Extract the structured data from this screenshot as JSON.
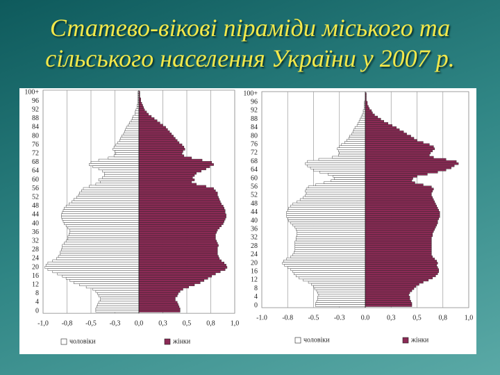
{
  "title": [
    "Статево-вікові піраміди міського та",
    "сільського населення України у 2007 р."
  ],
  "chart_data": [
    {
      "type": "pyramid",
      "categories": [
        "0",
        null,
        null,
        null,
        "4",
        null,
        null,
        null,
        "8",
        null,
        null,
        null,
        "12",
        null,
        null,
        null,
        "16",
        null,
        null,
        null,
        "20",
        null,
        null,
        null,
        "24",
        null,
        null,
        null,
        "28",
        null,
        null,
        null,
        "32",
        null,
        null,
        null,
        "36",
        null,
        null,
        null,
        "40",
        null,
        null,
        null,
        "44",
        null,
        null,
        null,
        "48",
        null,
        null,
        null,
        "52",
        null,
        null,
        null,
        "56",
        null,
        null,
        null,
        "60",
        null,
        null,
        null,
        "64",
        null,
        null,
        null,
        "68",
        null,
        null,
        null,
        "72",
        null,
        null,
        null,
        "76",
        null,
        null,
        null,
        "80",
        null,
        null,
        null,
        "84",
        null,
        null,
        null,
        "88",
        null,
        null,
        null,
        "92",
        null,
        null,
        null,
        "96",
        null,
        null,
        null,
        "100+"
      ],
      "series": [
        {
          "name": "чоловіки",
          "color": "#ffffff",
          "values": [
            -0.45,
            -0.45,
            -0.44,
            -0.43,
            -0.42,
            -0.4,
            -0.4,
            -0.42,
            -0.43,
            -0.45,
            -0.48,
            -0.55,
            -0.62,
            -0.68,
            -0.72,
            -0.76,
            -0.8,
            -0.85,
            -0.9,
            -0.95,
            -0.98,
            -0.97,
            -0.95,
            -0.9,
            -0.86,
            -0.84,
            -0.82,
            -0.82,
            -0.81,
            -0.8,
            -0.8,
            -0.78,
            -0.76,
            -0.74,
            -0.74,
            -0.73,
            -0.72,
            -0.72,
            -0.74,
            -0.76,
            -0.78,
            -0.79,
            -0.8,
            -0.81,
            -0.81,
            -0.8,
            -0.79,
            -0.78,
            -0.76,
            -0.73,
            -0.7,
            -0.68,
            -0.65,
            -0.63,
            -0.62,
            -0.6,
            -0.58,
            -0.52,
            -0.45,
            -0.4,
            -0.42,
            -0.38,
            -0.36,
            -0.36,
            -0.38,
            -0.42,
            -0.48,
            -0.52,
            -0.5,
            -0.42,
            -0.32,
            -0.26,
            -0.24,
            -0.25,
            -0.27,
            -0.26,
            -0.24,
            -0.22,
            -0.2,
            -0.19,
            -0.18,
            -0.16,
            -0.15,
            -0.14,
            -0.13,
            -0.11,
            -0.1,
            -0.08,
            -0.07,
            -0.06,
            -0.04,
            -0.04,
            -0.03,
            -0.02,
            -0.02,
            -0.01,
            -0.01,
            -0.01,
            -0.01,
            -0.01,
            -0.01
          ]
        },
        {
          "name": "жінки",
          "color": "#8b2a55",
          "values": [
            0.43,
            0.43,
            0.42,
            0.41,
            0.4,
            0.38,
            0.38,
            0.4,
            0.41,
            0.43,
            0.46,
            0.52,
            0.58,
            0.64,
            0.68,
            0.72,
            0.76,
            0.8,
            0.85,
            0.9,
            0.92,
            0.91,
            0.89,
            0.86,
            0.84,
            0.83,
            0.82,
            0.82,
            0.82,
            0.82,
            0.83,
            0.82,
            0.81,
            0.8,
            0.8,
            0.8,
            0.81,
            0.82,
            0.84,
            0.86,
            0.88,
            0.89,
            0.9,
            0.91,
            0.91,
            0.9,
            0.9,
            0.89,
            0.88,
            0.86,
            0.85,
            0.84,
            0.83,
            0.82,
            0.82,
            0.8,
            0.78,
            0.7,
            0.6,
            0.55,
            0.58,
            0.56,
            0.58,
            0.6,
            0.65,
            0.7,
            0.74,
            0.78,
            0.76,
            0.66,
            0.55,
            0.47,
            0.45,
            0.46,
            0.48,
            0.47,
            0.45,
            0.42,
            0.4,
            0.38,
            0.36,
            0.34,
            0.32,
            0.3,
            0.28,
            0.25,
            0.22,
            0.19,
            0.16,
            0.13,
            0.1,
            0.08,
            0.06,
            0.05,
            0.04,
            0.03,
            0.02,
            0.02,
            0.01,
            0.01,
            0.01
          ]
        }
      ],
      "xlim": [
        -1,
        1
      ],
      "xticks": [
        {
          "value": -1,
          "label": "-1,0"
        },
        {
          "value": -0.75,
          "label": "-0,8"
        },
        {
          "value": -0.5,
          "label": "-0,5"
        },
        {
          "value": -0.25,
          "label": "-0,3"
        },
        {
          "value": 0,
          "label": "0,0"
        },
        {
          "value": 0.25,
          "label": "0,3"
        },
        {
          "value": 0.5,
          "label": "0,5"
        },
        {
          "value": 0.75,
          "label": "0,8"
        },
        {
          "value": 1,
          "label": "1,0"
        }
      ],
      "grid": true
    },
    {
      "type": "pyramid",
      "categories": [
        "0",
        null,
        null,
        null,
        "4",
        null,
        null,
        null,
        "8",
        null,
        null,
        null,
        "12",
        null,
        null,
        null,
        "16",
        null,
        null,
        null,
        "20",
        null,
        null,
        null,
        "24",
        null,
        null,
        null,
        "28",
        null,
        null,
        null,
        "32",
        null,
        null,
        null,
        "36",
        null,
        null,
        null,
        "40",
        null,
        null,
        null,
        "44",
        null,
        null,
        null,
        "48",
        null,
        null,
        null,
        "52",
        null,
        null,
        null,
        "56",
        null,
        null,
        null,
        "60",
        null,
        null,
        null,
        "64",
        null,
        null,
        null,
        "68",
        null,
        null,
        null,
        "72",
        null,
        null,
        null,
        "76",
        null,
        null,
        null,
        "80",
        null,
        null,
        null,
        "84",
        null,
        null,
        null,
        "88",
        null,
        null,
        null,
        "92",
        null,
        null,
        null,
        "96",
        null,
        null,
        null,
        "100+"
      ],
      "series": [
        {
          "name": "чоловіки",
          "color": "#ffffff",
          "values": [
            -0.48,
            -0.48,
            -0.47,
            -0.46,
            -0.46,
            -0.45,
            -0.46,
            -0.47,
            -0.49,
            -0.5,
            -0.52,
            -0.55,
            -0.6,
            -0.64,
            -0.67,
            -0.69,
            -0.7,
            -0.72,
            -0.75,
            -0.78,
            -0.8,
            -0.79,
            -0.76,
            -0.72,
            -0.7,
            -0.69,
            -0.68,
            -0.68,
            -0.68,
            -0.68,
            -0.68,
            -0.67,
            -0.67,
            -0.66,
            -0.66,
            -0.66,
            -0.67,
            -0.68,
            -0.7,
            -0.72,
            -0.74,
            -0.75,
            -0.76,
            -0.76,
            -0.76,
            -0.75,
            -0.74,
            -0.72,
            -0.7,
            -0.66,
            -0.63,
            -0.6,
            -0.58,
            -0.57,
            -0.58,
            -0.57,
            -0.55,
            -0.48,
            -0.4,
            -0.33,
            -0.3,
            -0.31,
            -0.36,
            -0.44,
            -0.5,
            -0.53,
            -0.56,
            -0.58,
            -0.56,
            -0.45,
            -0.32,
            -0.26,
            -0.25,
            -0.26,
            -0.27,
            -0.25,
            -0.23,
            -0.2,
            -0.18,
            -0.16,
            -0.15,
            -0.13,
            -0.12,
            -0.11,
            -0.1,
            -0.08,
            -0.07,
            -0.06,
            -0.05,
            -0.04,
            -0.03,
            -0.02,
            -0.02,
            -0.01,
            -0.01,
            -0.01,
            -0.01,
            0,
            0,
            0,
            0
          ]
        },
        {
          "name": "жінки",
          "color": "#8b2a55",
          "values": [
            0.45,
            0.45,
            0.44,
            0.43,
            0.43,
            0.42,
            0.43,
            0.45,
            0.47,
            0.49,
            0.52,
            0.56,
            0.61,
            0.65,
            0.68,
            0.7,
            0.71,
            0.71,
            0.7,
            0.69,
            0.7,
            0.69,
            0.67,
            0.65,
            0.64,
            0.64,
            0.64,
            0.64,
            0.64,
            0.64,
            0.64,
            0.64,
            0.64,
            0.65,
            0.65,
            0.66,
            0.67,
            0.68,
            0.69,
            0.7,
            0.7,
            0.71,
            0.72,
            0.72,
            0.72,
            0.71,
            0.7,
            0.69,
            0.68,
            0.67,
            0.66,
            0.65,
            0.64,
            0.64,
            0.65,
            0.66,
            0.64,
            0.56,
            0.48,
            0.45,
            0.46,
            0.5,
            0.6,
            0.7,
            0.78,
            0.83,
            0.86,
            0.9,
            0.88,
            0.78,
            0.66,
            0.62,
            0.63,
            0.65,
            0.67,
            0.66,
            0.62,
            0.56,
            0.5,
            0.47,
            0.44,
            0.4,
            0.37,
            0.33,
            0.3,
            0.26,
            0.22,
            0.18,
            0.15,
            0.12,
            0.09,
            0.07,
            0.06,
            0.04,
            0.03,
            0.02,
            0.02,
            0.01,
            0.01,
            0.01,
            0.01
          ]
        }
      ],
      "xlim": [
        -1,
        1
      ],
      "xticks": [
        {
          "value": -1,
          "label": "-1.0"
        },
        {
          "value": -0.75,
          "label": "-0.8"
        },
        {
          "value": -0.5,
          "label": "-0.5"
        },
        {
          "value": -0.25,
          "label": "-0.3"
        },
        {
          "value": 0,
          "label": "0.0"
        },
        {
          "value": 0.25,
          "label": "0,3"
        },
        {
          "value": 0.5,
          "label": "0,5"
        },
        {
          "value": 0.75,
          "label": "0,8"
        },
        {
          "value": 1,
          "label": "1,0"
        }
      ],
      "grid": true
    }
  ]
}
